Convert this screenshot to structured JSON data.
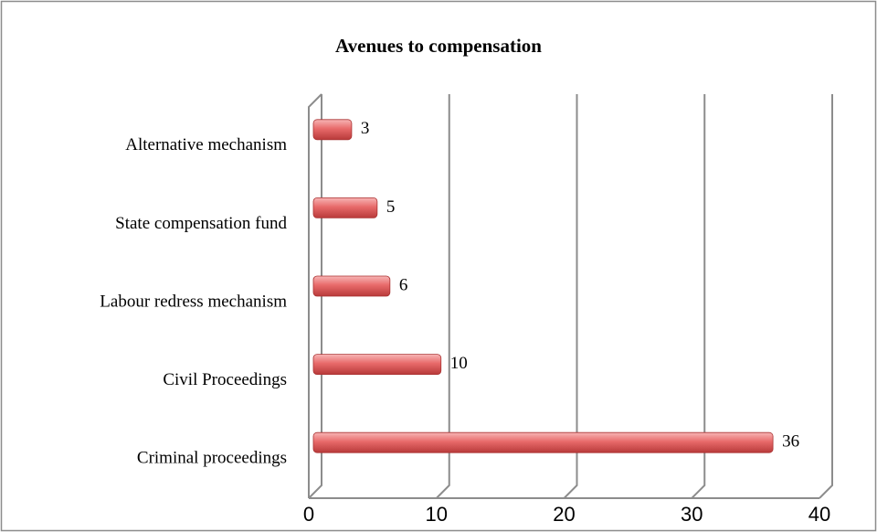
{
  "chart_data": {
    "type": "bar",
    "orientation": "horizontal",
    "title": "Avenues to compensation",
    "categories": [
      "Criminal proceedings",
      "Civil Proceedings",
      "Labour redress mechanism",
      "State compensation fund",
      "Alternative mechanism"
    ],
    "values": [
      36,
      10,
      6,
      5,
      3
    ],
    "color": "#e05a5a",
    "xlim": [
      0,
      40
    ],
    "xticks": [
      0,
      10,
      20,
      30,
      40
    ],
    "grid": true
  }
}
